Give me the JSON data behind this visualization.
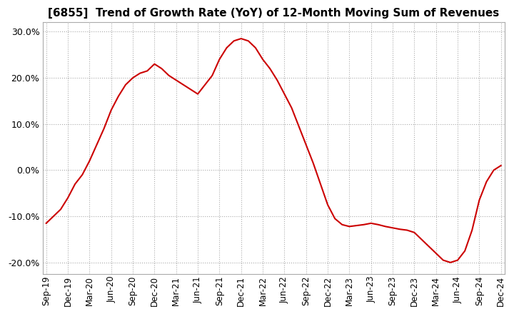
{
  "title": "[6855]  Trend of Growth Rate (YoY) of 12-Month Moving Sum of Revenues",
  "title_fontsize": 11,
  "line_color": "#cc0000",
  "background_color": "#ffffff",
  "grid_color": "#aaaaaa",
  "ylim": [
    -0.225,
    0.32
  ],
  "yticks": [
    -0.2,
    -0.1,
    0.0,
    0.1,
    0.2,
    0.3
  ],
  "ytick_labels": [
    "-20.0%",
    "-10.0%",
    "0.0%",
    "10.0%",
    "20.0%",
    "30.0%"
  ],
  "values": [
    -0.115,
    -0.1,
    -0.085,
    -0.06,
    -0.03,
    -0.01,
    0.02,
    0.055,
    0.09,
    0.13,
    0.16,
    0.185,
    0.2,
    0.21,
    0.215,
    0.23,
    0.22,
    0.205,
    0.195,
    0.185,
    0.175,
    0.165,
    0.185,
    0.205,
    0.24,
    0.265,
    0.28,
    0.285,
    0.28,
    0.265,
    0.24,
    0.22,
    0.195,
    0.165,
    0.135,
    0.095,
    0.055,
    0.015,
    -0.03,
    -0.075,
    -0.105,
    -0.118,
    -0.122,
    -0.12,
    -0.118,
    -0.115,
    -0.118,
    -0.122,
    -0.125,
    -0.128,
    -0.13,
    -0.135,
    -0.15,
    -0.165,
    -0.18,
    -0.195,
    -0.2,
    -0.195,
    -0.175,
    -0.13,
    -0.065,
    -0.025,
    0.0,
    0.01
  ],
  "xtick_positions": [
    0,
    3,
    6,
    9,
    12,
    15,
    18,
    21,
    24,
    27,
    30,
    33,
    36,
    39,
    42,
    45,
    48,
    51,
    54,
    57,
    60,
    63
  ],
  "xtick_labels": [
    "Sep-19",
    "Dec-19",
    "Mar-20",
    "Jun-20",
    "Sep-20",
    "Dec-20",
    "Mar-21",
    "Jun-21",
    "Sep-21",
    "Dec-21",
    "Mar-22",
    "Jun-22",
    "Sep-22",
    "Dec-22",
    "Mar-23",
    "Jun-23",
    "Sep-23",
    "Dec-23",
    "Mar-24",
    "Jun-24",
    "Sep-24",
    "Dec-24"
  ]
}
